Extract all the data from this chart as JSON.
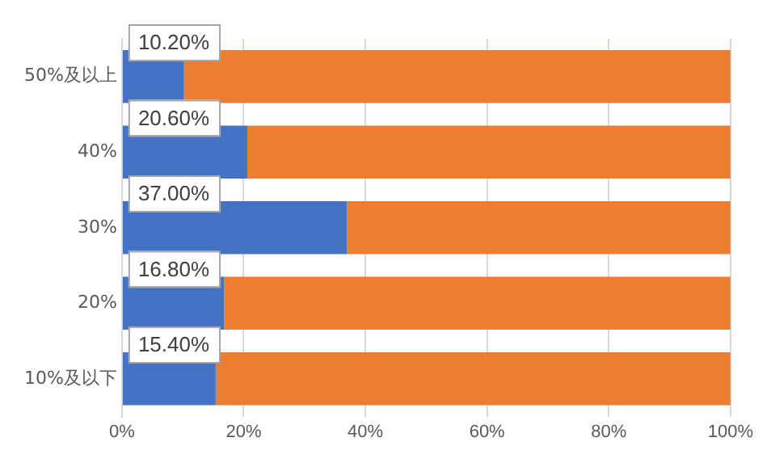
{
  "chart_data": {
    "type": "bar",
    "orientation": "horizontal",
    "stacked": true,
    "categories": [
      "50%及以上",
      "40%",
      "30%",
      "20%",
      "10%及以下"
    ],
    "series": [
      {
        "color": "#4472c4",
        "values": [
          10.2,
          20.6,
          37.0,
          16.8,
          15.4
        ],
        "value_labels": [
          "10.20%",
          "20.60%",
          "37.00%",
          "16.80%",
          "15.40%"
        ]
      },
      {
        "color": "#ed7d31",
        "values": [
          89.8,
          79.4,
          63.0,
          83.2,
          84.6
        ]
      }
    ],
    "xlim": [
      0,
      100
    ],
    "xticks": [
      {
        "value": 0,
        "label": "0%"
      },
      {
        "value": 20,
        "label": "20%"
      },
      {
        "value": 40,
        "label": "40%"
      },
      {
        "value": 60,
        "label": "60%"
      },
      {
        "value": 80,
        "label": "80%"
      },
      {
        "value": 100,
        "label": "100%"
      }
    ],
    "grid": "x",
    "legend": false
  }
}
